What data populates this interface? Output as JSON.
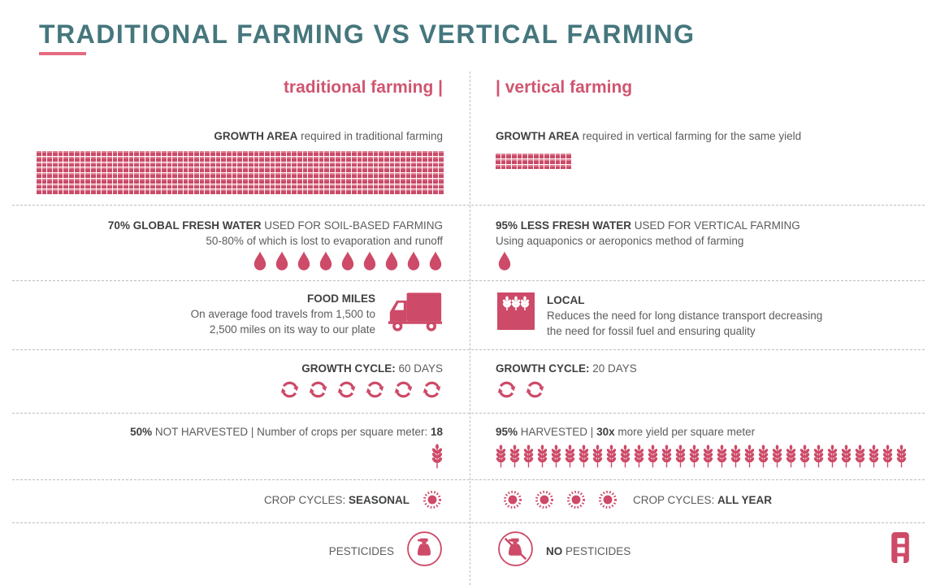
{
  "page": {
    "title": "TRADITIONAL FARMING VS VERTICAL FARMING"
  },
  "colors": {
    "accent_pink": "#cd4a68",
    "accent_pink_light": "#e56b80",
    "title_teal": "#45777d",
    "text_dark": "#3f4042",
    "text_gray": "#5b5c5e"
  },
  "columns": {
    "left_header": "traditional farming |",
    "right_header": "| vertical farming"
  },
  "rows": {
    "growth_area": {
      "left_bold": "GROWTH AREA",
      "left_rest": " required in traditional farming",
      "right_bold": "GROWTH AREA",
      "right_rest": " required in vertical farming for the same yield",
      "left_grid": {
        "cols": 75,
        "rows": 8,
        "cells": 600
      },
      "right_grid": {
        "cols": 14,
        "rows": 3,
        "cells": 42
      }
    },
    "water": {
      "left_bold": "70% GLOBAL FRESH WATER",
      "left_rest": " USED FOR SOIL-BASED FARMING",
      "left_line2": "50-80% of which is lost to evaporation and runoff",
      "left_drops": 9,
      "right_bold": "95% LESS FRESH WATER",
      "right_rest": " USED FOR VERTICAL FARMING",
      "right_line2": "Using aquaponics or aeroponics method of farming",
      "right_drops": 1
    },
    "transport": {
      "left_title": "FOOD MILES",
      "left_line1": "On average food travels from 1,500 to",
      "left_line2": "2,500 miles on its way to our plate",
      "right_title": "LOCAL",
      "right_line1": "Reduces the need for long distance transport decreasing",
      "right_line2": "the need for fossil fuel and ensuring quality"
    },
    "growth_cycle": {
      "left_bold": "GROWTH CYCLE:",
      "left_rest": " 60 DAYS",
      "left_cycles": 6,
      "right_bold": "GROWTH CYCLE:",
      "right_rest": " 20 DAYS",
      "right_cycles": 2
    },
    "harvest": {
      "left_bold1": "50%",
      "left_mid": " NOT HARVESTED | Number of crops per square meter: ",
      "left_bold2": "18",
      "left_wheat": 1,
      "right_bold1": "95%",
      "right_mid": " HARVESTED | ",
      "right_bold2": "30x",
      "right_rest": " more yield per square meter",
      "right_wheat": 30
    },
    "crop_cycles": {
      "left_label": "CROP CYCLES: ",
      "left_bold": "SEASONAL",
      "left_suns": 1,
      "right_suns": 4,
      "right_label": "CROP CYCLES: ",
      "right_bold": "ALL YEAR"
    },
    "pesticides": {
      "left_label": "PESTICIDES",
      "right_bold": "NO",
      "right_rest": " PESTICIDES"
    }
  }
}
